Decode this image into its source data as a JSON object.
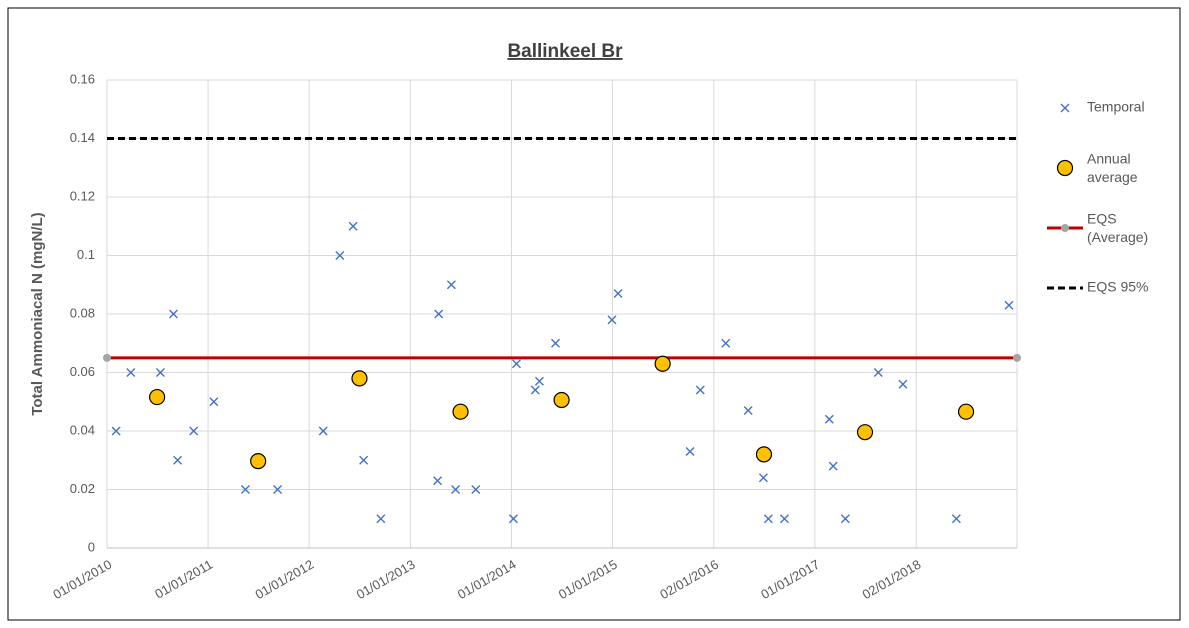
{
  "chart_data": {
    "type": "scatter",
    "title": "Ballinkeel Br",
    "y_label": "Total Ammoniacal N (mgN/L)",
    "xlim": [
      "2010-01-01",
      "2019-01-01"
    ],
    "xticks": [
      {
        "value": "2010-01-01",
        "label": "01/01/2010"
      },
      {
        "value": "2011-01-01",
        "label": "01/01/2011"
      },
      {
        "value": "2012-01-01",
        "label": "01/01/2012"
      },
      {
        "value": "2013-01-01",
        "label": "01/01/2013"
      },
      {
        "value": "2014-01-01",
        "label": "01/01/2014"
      },
      {
        "value": "2015-01-01",
        "label": "01/01/2015"
      },
      {
        "value": "2016-01-02",
        "label": "02/01/2016"
      },
      {
        "value": "2017-01-01",
        "label": "01/01/2017"
      },
      {
        "value": "2018-01-02",
        "label": "02/01/2018"
      }
    ],
    "ylim": [
      0,
      0.16
    ],
    "yticks": [
      0,
      0.02,
      0.04,
      0.06,
      0.08,
      0.1,
      0.12,
      0.14,
      0.16
    ],
    "grid": true,
    "legend": "right",
    "series": [
      {
        "name": "Temporal",
        "color": "#4472c4",
        "marker": "x",
        "x": [
          "2010-02-03",
          "2010-03-28",
          "2010-07-13",
          "2010-08-29",
          "2010-09-13",
          "2010-11-10",
          "2011-01-22",
          "2011-05-16",
          "2011-09-09",
          "2012-02-21",
          "2012-04-21",
          "2012-06-08",
          "2012-07-16",
          "2012-09-16",
          "2013-04-09",
          "2013-04-13",
          "2013-05-29",
          "2013-06-13",
          "2013-08-25",
          "2014-01-08",
          "2014-01-19",
          "2014-03-28",
          "2014-04-12",
          "2014-06-09",
          "2014-12-30",
          "2015-01-21",
          "2015-10-08",
          "2015-11-14",
          "2016-02-14",
          "2016-05-05",
          "2016-06-29",
          "2016-07-17",
          "2016-09-13",
          "2017-02-22",
          "2017-03-08",
          "2017-04-21",
          "2017-08-18",
          "2017-11-15",
          "2018-05-27",
          "2018-12-03"
        ],
        "values": [
          0.04,
          0.06,
          0.06,
          0.08,
          0.03,
          0.04,
          0.05,
          0.02,
          0.02,
          0.04,
          0.1,
          0.11,
          0.03,
          0.01,
          0.023,
          0.08,
          0.09,
          0.02,
          0.02,
          0.01,
          0.063,
          0.054,
          0.057,
          0.07,
          0.078,
          0.087,
          0.033,
          0.054,
          0.07,
          0.047,
          0.024,
          0.01,
          0.01,
          0.044,
          0.028,
          0.01,
          0.06,
          0.056,
          0.01,
          0.083
        ]
      },
      {
        "name": "Annual average",
        "color": "#ffc000",
        "marker": "circle",
        "x": [
          "2010-07-01",
          "2011-07-01",
          "2012-07-01",
          "2013-07-01",
          "2014-07-01",
          "2015-07-01",
          "2016-07-01",
          "2017-07-01",
          "2018-07-01"
        ],
        "values": [
          0.0516,
          0.0297,
          0.058,
          0.0466,
          0.0506,
          0.063,
          0.032,
          0.0396,
          0.0466
        ]
      }
    ],
    "reference_lines": [
      {
        "name": "EQS (Average)",
        "value": 0.065,
        "color": "#c00000",
        "end_marker_color": "#a5a5a5"
      },
      {
        "name": "EQS 95%",
        "value": 0.14,
        "color": "#000000",
        "dashed": true
      }
    ]
  }
}
